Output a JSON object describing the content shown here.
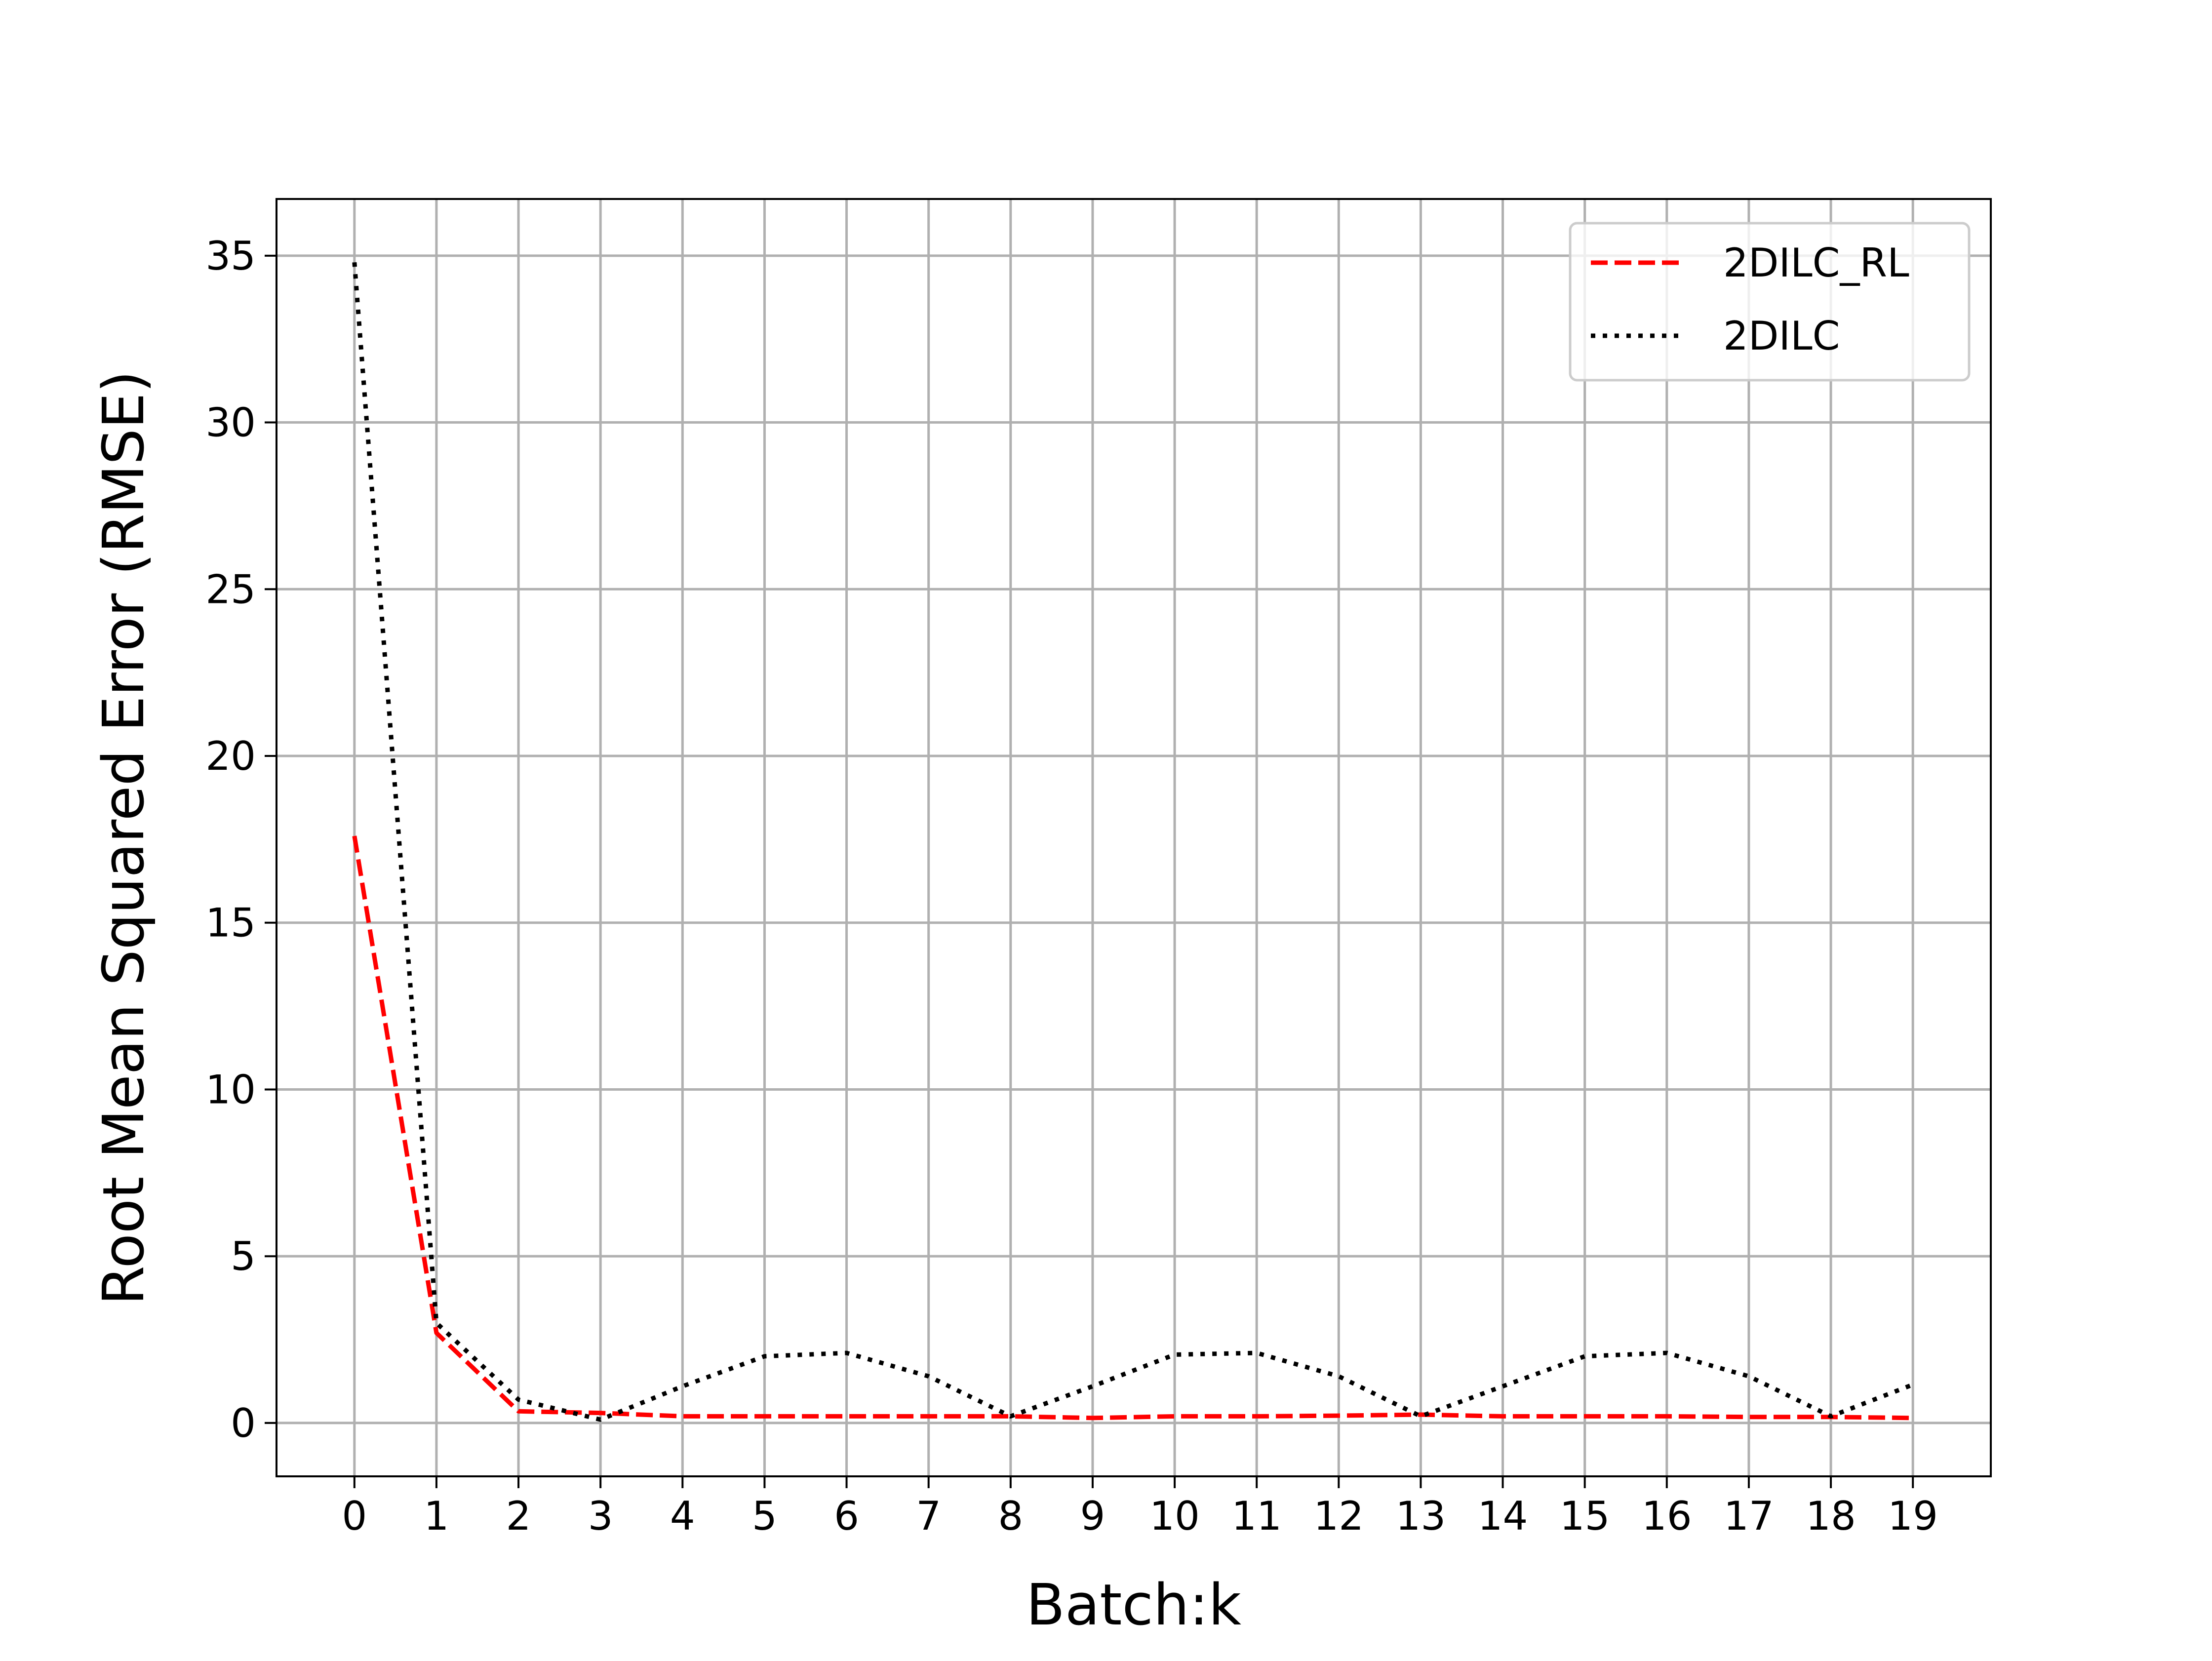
{
  "chart_data": {
    "type": "line",
    "title": "",
    "xlabel": "Batch:k",
    "ylabel": "Root Mean Squared Error (RMSE)",
    "x": [
      0,
      1,
      2,
      3,
      4,
      5,
      6,
      7,
      8,
      9,
      10,
      11,
      12,
      13,
      14,
      15,
      16,
      17,
      18,
      19
    ],
    "xticks": [
      "0",
      "1",
      "2",
      "3",
      "4",
      "5",
      "6",
      "7",
      "8",
      "9",
      "10",
      "11",
      "12",
      "13",
      "14",
      "15",
      "16",
      "17",
      "18",
      "19"
    ],
    "yticks": [
      "0",
      "5",
      "10",
      "15",
      "20",
      "25",
      "30",
      "35"
    ],
    "xlim": [
      -0.95,
      19.95
    ],
    "ylim": [
      -1.6,
      36.7
    ],
    "grid": true,
    "legend_position": "top-right",
    "series": [
      {
        "name": "2DILC_RL",
        "color": "#ff0000",
        "style": "dashed",
        "values": [
          17.6,
          2.7,
          0.35,
          0.3,
          0.2,
          0.2,
          0.2,
          0.2,
          0.2,
          0.15,
          0.2,
          0.2,
          0.22,
          0.25,
          0.2,
          0.2,
          0.2,
          0.18,
          0.18,
          0.15
        ]
      },
      {
        "name": "2DILC",
        "color": "#000000",
        "style": "dotted",
        "values": [
          34.8,
          3.0,
          0.7,
          0.1,
          1.1,
          2.0,
          2.1,
          1.4,
          0.2,
          1.1,
          2.05,
          2.1,
          1.4,
          0.2,
          1.1,
          2.0,
          2.1,
          1.4,
          0.2,
          1.15
        ]
      }
    ]
  }
}
